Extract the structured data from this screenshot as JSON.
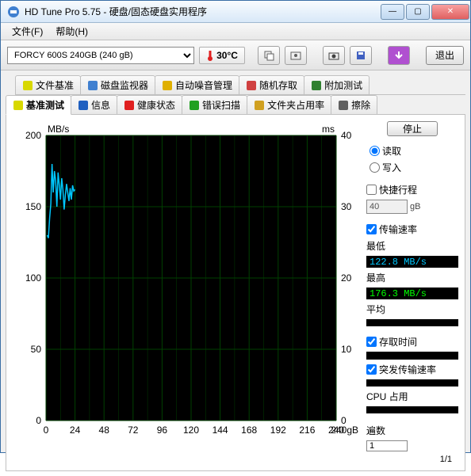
{
  "titlebar": {
    "text": "HD Tune Pro 5.75 - 硬盘/固态硬盘实用程序"
  },
  "menubar": {
    "file": "文件(F)",
    "help": "帮助(H)"
  },
  "toolbar": {
    "drive": "FORCY 600S 240GB (240 gB)",
    "temp": "30°C",
    "exit": "退出"
  },
  "tabs_row1": [
    {
      "label": "文件基准",
      "iconColor": "#d8d800"
    },
    {
      "label": "磁盘监视器",
      "iconColor": "#4080d0"
    },
    {
      "label": "自动噪音管理",
      "iconColor": "#e0b000"
    },
    {
      "label": "随机存取",
      "iconColor": "#d04040"
    },
    {
      "label": "附加测试",
      "iconColor": "#308030"
    }
  ],
  "tabs_row2": [
    {
      "label": "基准测试",
      "iconColor": "#d8d800",
      "active": true
    },
    {
      "label": "信息",
      "iconColor": "#2060c0"
    },
    {
      "label": "健康状态",
      "iconColor": "#e02020"
    },
    {
      "label": "错误扫描",
      "iconColor": "#20a020"
    },
    {
      "label": "文件夹占用率",
      "iconColor": "#d0a020"
    },
    {
      "label": "擦除",
      "iconColor": "#606060"
    }
  ],
  "chart": {
    "ylabel_left": "MB/s",
    "ylabel_right": "ms",
    "xlabel_right": "240gB",
    "ylim_left": [
      0,
      200
    ],
    "ylim_right": [
      0,
      40
    ],
    "ytick_step_left": 50,
    "ytick_step_right": 10,
    "xlim": [
      0,
      240
    ],
    "xtick_step": 24,
    "series_color": "#00c8ff",
    "background_color": "#000000",
    "grid_color": "#004000",
    "data": [
      [
        1,
        130
      ],
      [
        2,
        128
      ],
      [
        3,
        142
      ],
      [
        4,
        152
      ],
      [
        5,
        180
      ],
      [
        6,
        160
      ],
      [
        7,
        175
      ],
      [
        8,
        168
      ],
      [
        9,
        150
      ],
      [
        10,
        174
      ],
      [
        11,
        165
      ],
      [
        12,
        155
      ],
      [
        13,
        170
      ],
      [
        14,
        162
      ],
      [
        15,
        148
      ],
      [
        16,
        158
      ],
      [
        17,
        166
      ],
      [
        18,
        160
      ],
      [
        19,
        154
      ],
      [
        20,
        163
      ],
      [
        21,
        155
      ],
      [
        22,
        165
      ],
      [
        23,
        161
      ],
      [
        24,
        162
      ]
    ]
  },
  "side": {
    "stop": "停止",
    "read": "读取",
    "write": "写入",
    "shortStroke": "快捷行程",
    "shortStrokeVal": "40",
    "shortStrokeUnit": "gB",
    "transfer": "传输速率",
    "min": "最低",
    "minVal": "122.8 MB/s",
    "max": "最高",
    "maxVal": "176.3 MB/s",
    "avg": "平均",
    "accessTime": "存取时间",
    "burst": "突发传输速率",
    "cpu": "CPU 占用",
    "passes": "遍数",
    "passesVal": "1",
    "passCount": "1/1"
  }
}
